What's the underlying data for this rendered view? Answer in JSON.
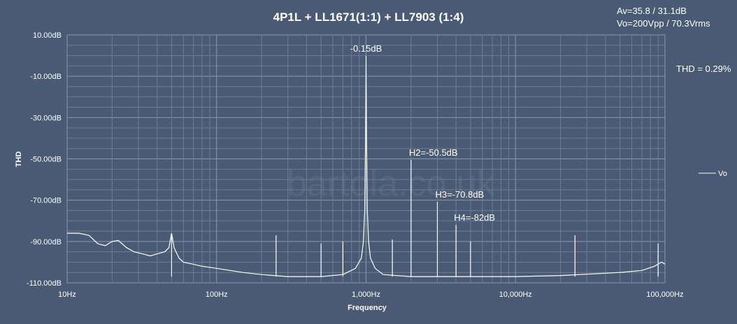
{
  "chart_data": {
    "type": "line",
    "title": "4P1L  + LL1671(1:1)  + LL7903  (1:4)",
    "notes": [
      "Av=35.8 / 31.1dB",
      "Vo=200Vpp / 70.3Vrms",
      "THD = 0.29%"
    ],
    "xlabel": "Frequency",
    "ylabel": "THD",
    "x_scale": "log",
    "xlim": [
      10,
      100000
    ],
    "ylim": [
      -110,
      10
    ],
    "x_ticks": [
      {
        "value": 10,
        "label": "10Hz"
      },
      {
        "value": 100,
        "label": "100Hz"
      },
      {
        "value": 1000,
        "label": "1,000Hz"
      },
      {
        "value": 10000,
        "label": "10,000Hz"
      },
      {
        "value": 100000,
        "label": "100,000Hz"
      }
    ],
    "y_ticks": [
      {
        "value": 10,
        "label": "10.00dB"
      },
      {
        "value": -10,
        "label": "-10.00dB"
      },
      {
        "value": -30,
        "label": "-30.00dB"
      },
      {
        "value": -50,
        "label": "-50.00dB"
      },
      {
        "value": -70,
        "label": "-70.00dB"
      },
      {
        "value": -90,
        "label": "-90.00dB"
      },
      {
        "value": -110,
        "label": "-110.00dB"
      }
    ],
    "grid": true,
    "legend_position": "right",
    "colors": {
      "background": "#4a5a74",
      "grid": "#6e7d94",
      "grid_major": "#8a98ad",
      "series": "#ffffff"
    },
    "series": [
      {
        "name": "Vo",
        "points": [
          [
            10,
            -86
          ],
          [
            12,
            -86
          ],
          [
            14,
            -87
          ],
          [
            16,
            -91
          ],
          [
            18,
            -92
          ],
          [
            20,
            -90
          ],
          [
            22,
            -89.5
          ],
          [
            25,
            -93
          ],
          [
            28,
            -95
          ],
          [
            32,
            -96
          ],
          [
            36,
            -97
          ],
          [
            40,
            -96
          ],
          [
            45,
            -95
          ],
          [
            48,
            -93
          ],
          [
            50,
            -86
          ],
          [
            52,
            -93
          ],
          [
            56,
            -98
          ],
          [
            60,
            -100
          ],
          [
            70,
            -101
          ],
          [
            80,
            -102
          ],
          [
            100,
            -103
          ],
          [
            150,
            -105
          ],
          [
            200,
            -106
          ],
          [
            300,
            -107
          ],
          [
            500,
            -107
          ],
          [
            700,
            -106
          ],
          [
            850,
            -103
          ],
          [
            930,
            -98
          ],
          [
            960,
            -90
          ],
          [
            980,
            -75
          ],
          [
            992,
            -40
          ],
          [
            1000,
            -0.15
          ],
          [
            1008,
            -40
          ],
          [
            1020,
            -75
          ],
          [
            1040,
            -90
          ],
          [
            1070,
            -98
          ],
          [
            1150,
            -103
          ],
          [
            1300,
            -106
          ],
          [
            2000,
            -107
          ],
          [
            5000,
            -107
          ],
          [
            10000,
            -107
          ],
          [
            20000,
            -106.5
          ],
          [
            50000,
            -105
          ],
          [
            70000,
            -104
          ],
          [
            85000,
            -102
          ],
          [
            95000,
            -100
          ],
          [
            100000,
            -101
          ]
        ],
        "spikes": [
          [
            50,
            -86
          ],
          [
            250,
            -87
          ],
          [
            500,
            -91
          ],
          [
            700,
            -90
          ],
          [
            1500,
            -89
          ],
          [
            2000,
            -50.5
          ],
          [
            3000,
            -70.8
          ],
          [
            4000,
            -82
          ],
          [
            5000,
            -90
          ],
          [
            25000,
            -87
          ],
          [
            90000,
            -91
          ]
        ]
      }
    ],
    "annotations": [
      {
        "x": 1000,
        "y": -0.15,
        "text": "-0.15dB"
      },
      {
        "x": 2000,
        "y": -50.5,
        "text": "H2=-50.5dB"
      },
      {
        "x": 3000,
        "y": -70.8,
        "text": "H3=-70.8dB"
      },
      {
        "x": 4000,
        "y": -82,
        "text": "H4=-82dB"
      }
    ]
  },
  "watermark": "bartola.co.uk"
}
